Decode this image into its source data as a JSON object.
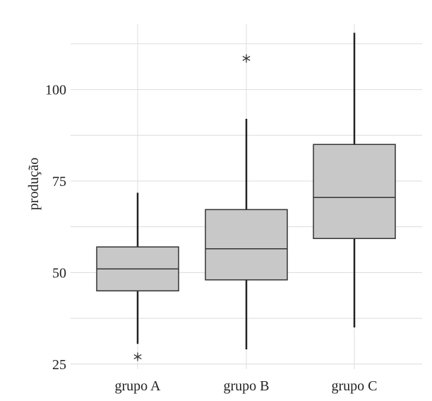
{
  "chart_data": {
    "type": "boxplot",
    "title": "",
    "xlabel": "",
    "ylabel": "produção",
    "ylim": [
      23.6,
      120.6
    ],
    "yticks": [
      25,
      50,
      75,
      100
    ],
    "ytick_labels": [
      "25",
      "50",
      "75",
      "100"
    ],
    "grid": true,
    "categories": [
      "grupo A",
      "grupo B",
      "grupo C"
    ],
    "boxes": [
      {
        "label": "grupo A",
        "q1": 45.0,
        "median": 51.0,
        "q3": 57.0,
        "whisker_low": 30.5,
        "whisker_high": 71.8,
        "outliers": [
          27.0
        ]
      },
      {
        "label": "grupo B",
        "q1": 48.0,
        "median": 56.5,
        "q3": 67.2,
        "whisker_low": 29.0,
        "whisker_high": 92.0,
        "outliers": [
          108.5
        ]
      },
      {
        "label": "grupo C",
        "q1": 59.3,
        "median": 70.5,
        "q3": 85.0,
        "whisker_low": 35.0,
        "whisker_high": 115.5,
        "outliers": []
      }
    ],
    "colors": {
      "box_fill": "#c8c8c8",
      "box_stroke": "#333333",
      "whisker": "#222222",
      "grid": "#dcdcdc",
      "outlier": "#333333"
    }
  }
}
